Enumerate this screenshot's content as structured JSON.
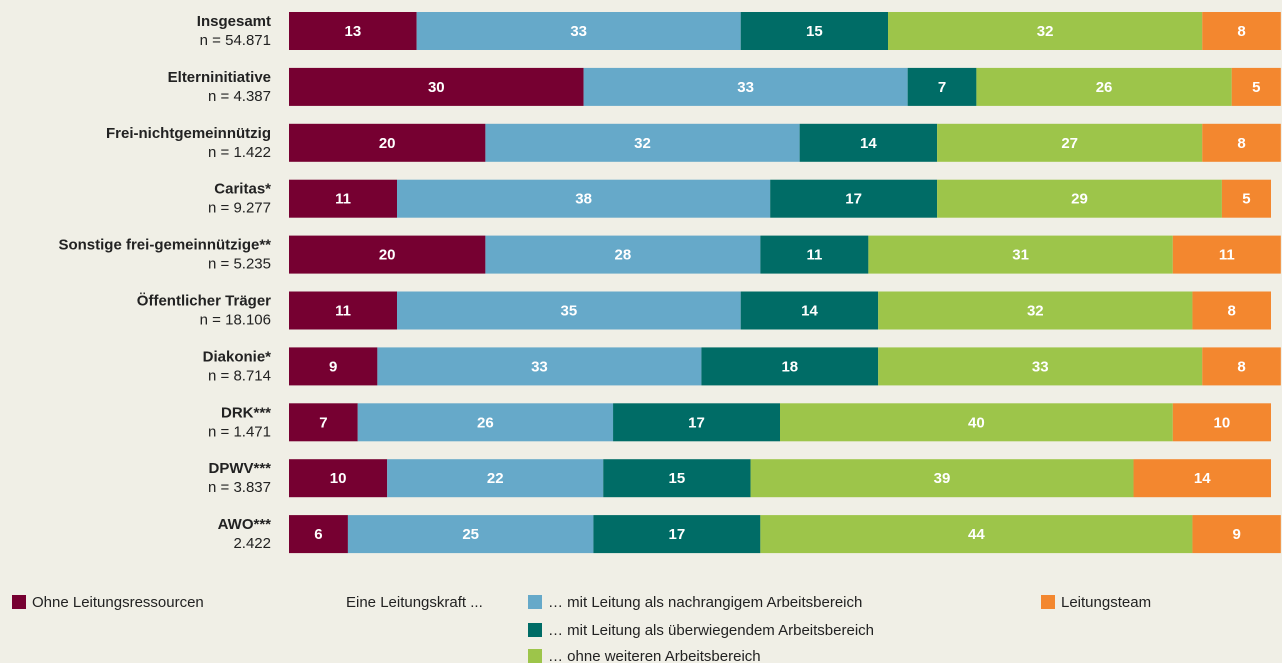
{
  "chart_data": {
    "type": "stacked_bar_horizontal",
    "categories": [
      "Insgesamt",
      "Elterninitiative",
      "Frei-nichtgemeinnützig",
      "Caritas*",
      "Sonstige frei-gemeinnützige**",
      "Öffentlicher Träger",
      "Diakonie*",
      "DRK***",
      "DPWV***",
      "AWO***"
    ],
    "sample_sizes": [
      "n = 54.871",
      "n = 4.387",
      "n = 1.422",
      "n = 9.277",
      "n = 5.235",
      "n = 18.106",
      "n = 8.714",
      "n = 1.471",
      "n = 3.837",
      "2.422"
    ],
    "xlim": [
      0,
      100
    ],
    "legend_group_label": "Eine Leitungskraft ...",
    "series": [
      {
        "name": "Ohne Leitungsressourcen",
        "color": "#760031",
        "values": [
          13,
          30,
          20,
          11,
          20,
          11,
          9,
          7,
          10,
          6
        ]
      },
      {
        "name": "… mit Leitung als nachrangigem Arbeitsbereich",
        "color": "#66a9c9",
        "values": [
          33,
          33,
          32,
          38,
          28,
          35,
          33,
          26,
          22,
          25
        ]
      },
      {
        "name": "… mit Leitung als überwiegendem Arbeitsbereich",
        "color": "#006c66",
        "values": [
          15,
          7,
          14,
          17,
          11,
          14,
          18,
          17,
          15,
          17
        ]
      },
      {
        "name": "… ohne weiteren Arbeitsbereich",
        "color": "#9dc54a",
        "values": [
          32,
          26,
          27,
          29,
          31,
          32,
          33,
          40,
          39,
          44
        ]
      },
      {
        "name": "Leitungsteam",
        "color": "#f3872f",
        "values": [
          8,
          5,
          8,
          5,
          11,
          8,
          8,
          10,
          14,
          9
        ]
      }
    ]
  }
}
